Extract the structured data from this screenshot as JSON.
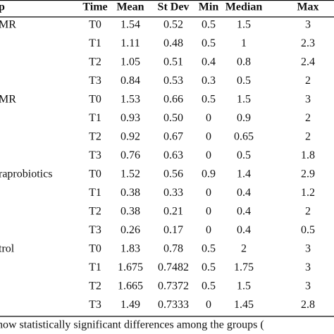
{
  "table": {
    "header": [
      "p",
      "Time",
      "Mean",
      "St Dev",
      "Min",
      "Median",
      "Max"
    ],
    "groups": [
      {
        "label": "MR",
        "rows": [
          [
            "T0",
            "1.54",
            "0.52",
            "0.5",
            "1.5",
            "3"
          ],
          [
            "T1",
            "1.11",
            "0.48",
            "0.5",
            "1",
            "2.3"
          ],
          [
            "T2",
            "1.05",
            "0.51",
            "0.4",
            "0.8",
            "2.4"
          ],
          [
            "T3",
            "0.84",
            "0.53",
            "0.3",
            "0.5",
            "2"
          ]
        ]
      },
      {
        "label": "MR",
        "rows": [
          [
            "T0",
            "1.53",
            "0.66",
            "0.5",
            "1.5",
            "3"
          ],
          [
            "T1",
            "0.93",
            "0.50",
            "0",
            "0.9",
            "2"
          ],
          [
            "T2",
            "0.92",
            "0.67",
            "0",
            "0.65",
            "2"
          ],
          [
            "T3",
            "0.76",
            "0.63",
            "0",
            "0.5",
            "1.8"
          ]
        ]
      },
      {
        "label": "raprobiotics",
        "rows": [
          [
            "T0",
            "1.52",
            "0.56",
            "0.9",
            "1.4",
            "2.9"
          ],
          [
            "T1",
            "0.38",
            "0.33",
            "0",
            "0.4",
            "1.2"
          ],
          [
            "T2",
            "0.38",
            "0.21",
            "0",
            "0.4",
            "2"
          ],
          [
            "T3",
            "0.26",
            "0.17",
            "0",
            "0.4",
            "0.5"
          ]
        ]
      },
      {
        "label": "trol",
        "rows": [
          [
            "T0",
            "1.83",
            "0.78",
            "0.5",
            "2",
            "3"
          ],
          [
            "T1",
            "1.675",
            "0.7482",
            "0.5",
            "1.75",
            "3"
          ],
          [
            "T2",
            "1.665",
            "0.7372",
            "0.5",
            "1.5",
            "3"
          ],
          [
            "T3",
            "1.49",
            "0.7333",
            "0",
            "1.45",
            "2.8"
          ]
        ]
      }
    ],
    "footnote": "how statistically significant differences among the groups ("
  }
}
